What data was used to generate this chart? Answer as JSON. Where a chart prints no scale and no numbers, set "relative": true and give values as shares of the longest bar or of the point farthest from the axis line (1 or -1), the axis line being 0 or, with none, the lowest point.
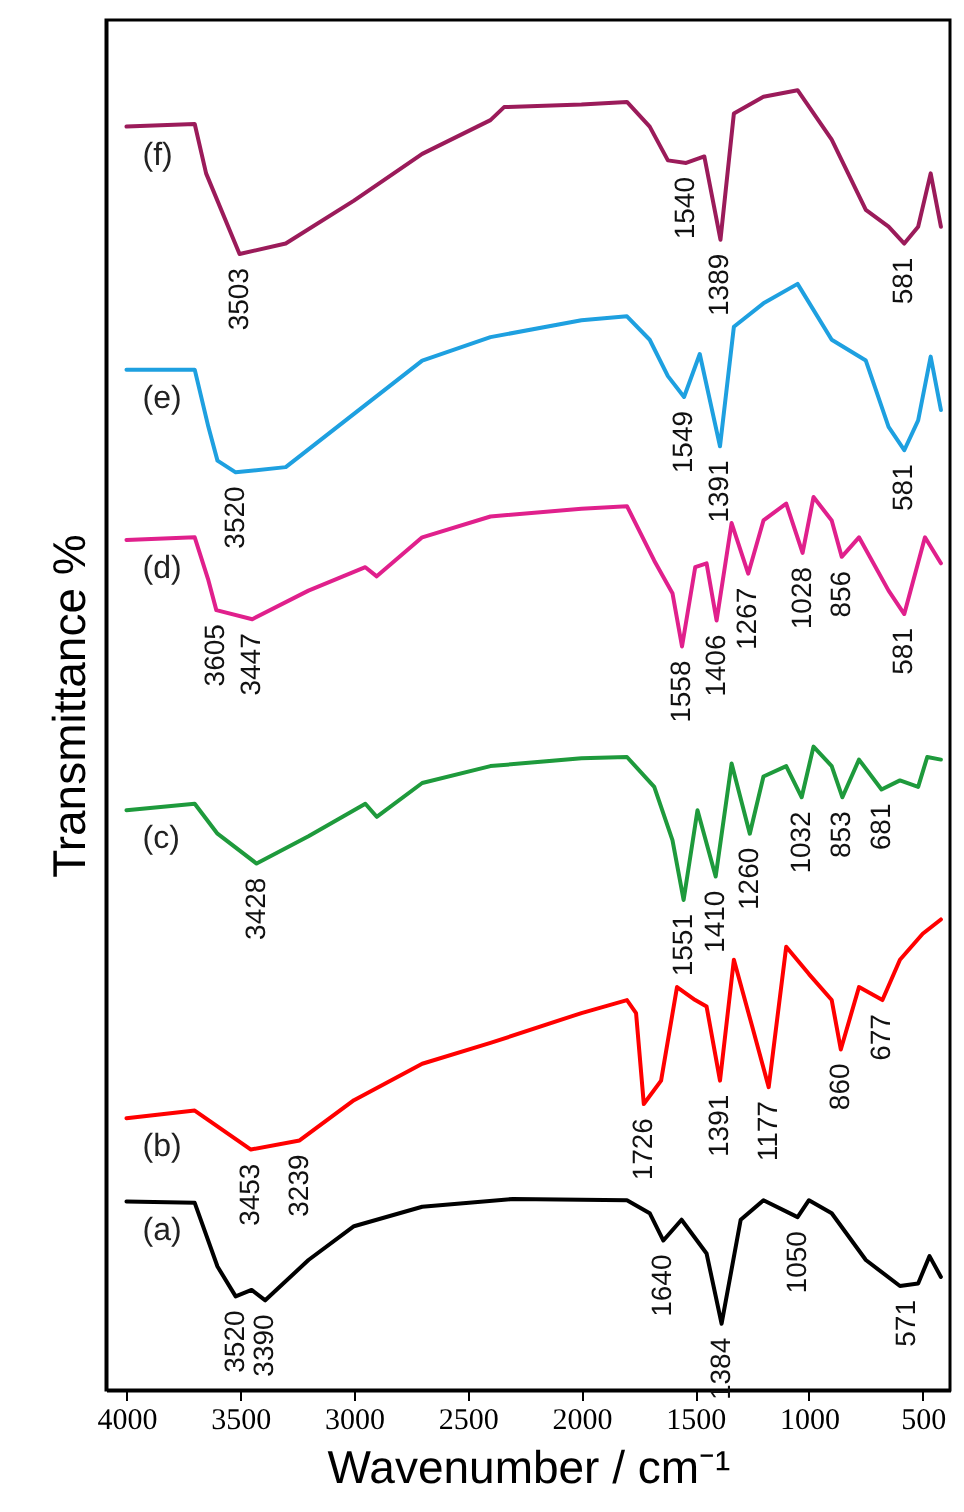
{
  "chart_data": {
    "type": "line",
    "relative": true,
    "xlabel": "Wavenumber / cm⁻¹",
    "ylabel": "Transmittance  %",
    "xlim": [
      4090,
      380
    ],
    "xticks": [
      4000,
      3500,
      3000,
      2500,
      2000,
      1500,
      1000,
      500
    ],
    "grid": false,
    "line_style": "solid",
    "marker": "none",
    "series": [
      {
        "name": "(a)",
        "color": "#000000",
        "x": [
          4000,
          3700,
          3600,
          3520,
          3450,
          3390,
          3200,
          3000,
          2700,
          2300,
          1800,
          1700,
          1640,
          1560,
          1450,
          1384,
          1300,
          1200,
          1050,
          1000,
          900,
          750,
          600,
          520,
          470,
          420
        ],
        "values": [
          0.145,
          0.144,
          0.095,
          0.072,
          0.077,
          0.069,
          0.1,
          0.126,
          0.141,
          0.147,
          0.146,
          0.136,
          0.115,
          0.131,
          0.105,
          0.051,
          0.131,
          0.146,
          0.133,
          0.146,
          0.136,
          0.1,
          0.08,
          0.082,
          0.103,
          0.087
        ]
      },
      {
        "name": "(b)",
        "color": "#ff0000",
        "x": [
          4000,
          3700,
          3453,
          3239,
          3000,
          2700,
          2400,
          2000,
          1800,
          1760,
          1726,
          1650,
          1580,
          1500,
          1450,
          1391,
          1330,
          1250,
          1177,
          1100,
          1000,
          900,
          860,
          780,
          677,
          600,
          500,
          420
        ],
        "values": [
          0.209,
          0.215,
          0.185,
          0.192,
          0.223,
          0.251,
          0.267,
          0.29,
          0.3,
          0.29,
          0.22,
          0.238,
          0.31,
          0.3,
          0.295,
          0.238,
          0.331,
          0.28,
          0.233,
          0.341,
          0.32,
          0.3,
          0.262,
          0.31,
          0.3,
          0.331,
          0.351,
          0.362
        ]
      },
      {
        "name": "(c)",
        "color": "#1e9a3c",
        "x": [
          4000,
          3700,
          3600,
          3428,
          3200,
          2950,
          2900,
          2700,
          2400,
          2000,
          1800,
          1680,
          1600,
          1551,
          1490,
          1410,
          1340,
          1260,
          1200,
          1100,
          1032,
          980,
          900,
          853,
          780,
          681,
          600,
          520,
          480,
          420
        ],
        "values": [
          0.446,
          0.451,
          0.428,
          0.405,
          0.426,
          0.451,
          0.441,
          0.467,
          0.48,
          0.486,
          0.487,
          0.464,
          0.423,
          0.377,
          0.446,
          0.395,
          0.482,
          0.428,
          0.472,
          0.48,
          0.456,
          0.495,
          0.48,
          0.456,
          0.485,
          0.462,
          0.469,
          0.464,
          0.487,
          0.485
        ]
      },
      {
        "name": "(d)",
        "color": "#e0208c",
        "x": [
          4000,
          3700,
          3640,
          3605,
          3447,
          3200,
          2950,
          2900,
          2700,
          2400,
          2000,
          1800,
          1680,
          1600,
          1558,
          1500,
          1450,
          1406,
          1340,
          1267,
          1200,
          1100,
          1028,
          980,
          900,
          856,
          780,
          650,
          581,
          490,
          420
        ],
        "values": [
          0.654,
          0.656,
          0.623,
          0.6,
          0.593,
          0.615,
          0.633,
          0.626,
          0.656,
          0.672,
          0.678,
          0.68,
          0.638,
          0.613,
          0.572,
          0.633,
          0.636,
          0.592,
          0.667,
          0.628,
          0.669,
          0.682,
          0.644,
          0.687,
          0.669,
          0.641,
          0.656,
          0.615,
          0.597,
          0.656,
          0.636
        ]
      },
      {
        "name": "(e)",
        "color": "#1ea0e0",
        "x": [
          4000,
          3700,
          3640,
          3600,
          3520,
          3300,
          3000,
          2700,
          2400,
          2000,
          1800,
          1700,
          1620,
          1549,
          1480,
          1391,
          1330,
          1200,
          1050,
          900,
          750,
          650,
          581,
          520,
          465,
          420
        ],
        "values": [
          0.785,
          0.785,
          0.741,
          0.715,
          0.706,
          0.71,
          0.751,
          0.792,
          0.81,
          0.823,
          0.826,
          0.808,
          0.78,
          0.764,
          0.797,
          0.726,
          0.818,
          0.836,
          0.851,
          0.808,
          0.792,
          0.741,
          0.723,
          0.746,
          0.795,
          0.754
        ]
      },
      {
        "name": "(f)",
        "color": "#9b1b5a",
        "x": [
          4000,
          3700,
          3650,
          3503,
          3300,
          3000,
          2700,
          2400,
          2340,
          2000,
          1800,
          1700,
          1620,
          1540,
          1460,
          1389,
          1330,
          1200,
          1050,
          900,
          750,
          650,
          581,
          520,
          465,
          420
        ],
        "values": [
          0.972,
          0.974,
          0.936,
          0.874,
          0.882,
          0.915,
          0.951,
          0.977,
          0.987,
          0.989,
          0.991,
          0.972,
          0.946,
          0.944,
          0.949,
          0.885,
          0.982,
          0.995,
          1.0,
          0.962,
          0.908,
          0.895,
          0.882,
          0.895,
          0.936,
          0.895
        ]
      }
    ],
    "annotations": [
      {
        "text": "3503",
        "x": 3503,
        "y": 0.874
      },
      {
        "text": "1540",
        "x": 1540,
        "y": 0.944
      },
      {
        "text": "1389",
        "x": 1389,
        "y": 0.885
      },
      {
        "text": "581",
        "x": 581,
        "y": 0.882
      },
      {
        "text": "3520",
        "x": 3520,
        "y": 0.706
      },
      {
        "text": "1549",
        "x": 1549,
        "y": 0.764
      },
      {
        "text": "1391",
        "x": 1391,
        "y": 0.726
      },
      {
        "text": "581",
        "x": 581,
        "y": 0.723
      },
      {
        "text": "3605",
        "x": 3605,
        "y": 0.6
      },
      {
        "text": "3447",
        "x": 3447,
        "y": 0.593
      },
      {
        "text": "1558",
        "x": 1558,
        "y": 0.572
      },
      {
        "text": "1406",
        "x": 1406,
        "y": 0.592
      },
      {
        "text": "1267",
        "x": 1267,
        "y": 0.628
      },
      {
        "text": "1028",
        "x": 1028,
        "y": 0.644
      },
      {
        "text": "856",
        "x": 856,
        "y": 0.641
      },
      {
        "text": "581",
        "x": 581,
        "y": 0.597
      },
      {
        "text": "3428",
        "x": 3428,
        "y": 0.405
      },
      {
        "text": "1551",
        "x": 1551,
        "y": 0.377
      },
      {
        "text": "1410",
        "x": 1410,
        "y": 0.395
      },
      {
        "text": "1260",
        "x": 1260,
        "y": 0.428
      },
      {
        "text": "1032",
        "x": 1032,
        "y": 0.456
      },
      {
        "text": "853",
        "x": 853,
        "y": 0.456
      },
      {
        "text": "681",
        "x": 681,
        "y": 0.462
      },
      {
        "text": "3453",
        "x": 3453,
        "y": 0.185
      },
      {
        "text": "3239",
        "x": 3239,
        "y": 0.192
      },
      {
        "text": "1726",
        "x": 1726,
        "y": 0.22
      },
      {
        "text": "1391",
        "x": 1391,
        "y": 0.238
      },
      {
        "text": "1177",
        "x": 1177,
        "y": 0.233
      },
      {
        "text": "860",
        "x": 860,
        "y": 0.262
      },
      {
        "text": "677",
        "x": 677,
        "y": 0.3
      },
      {
        "text": "3520",
        "x": 3520,
        "y": 0.072
      },
      {
        "text": "3390",
        "x": 3390,
        "y": 0.069
      },
      {
        "text": "1640",
        "x": 1640,
        "y": 0.115
      },
      {
        "text": "1384",
        "x": 1384,
        "y": 0.051
      },
      {
        "text": "1050",
        "x": 1050,
        "y": 0.133
      },
      {
        "text": "571",
        "x": 571,
        "y": 0.08
      }
    ]
  }
}
